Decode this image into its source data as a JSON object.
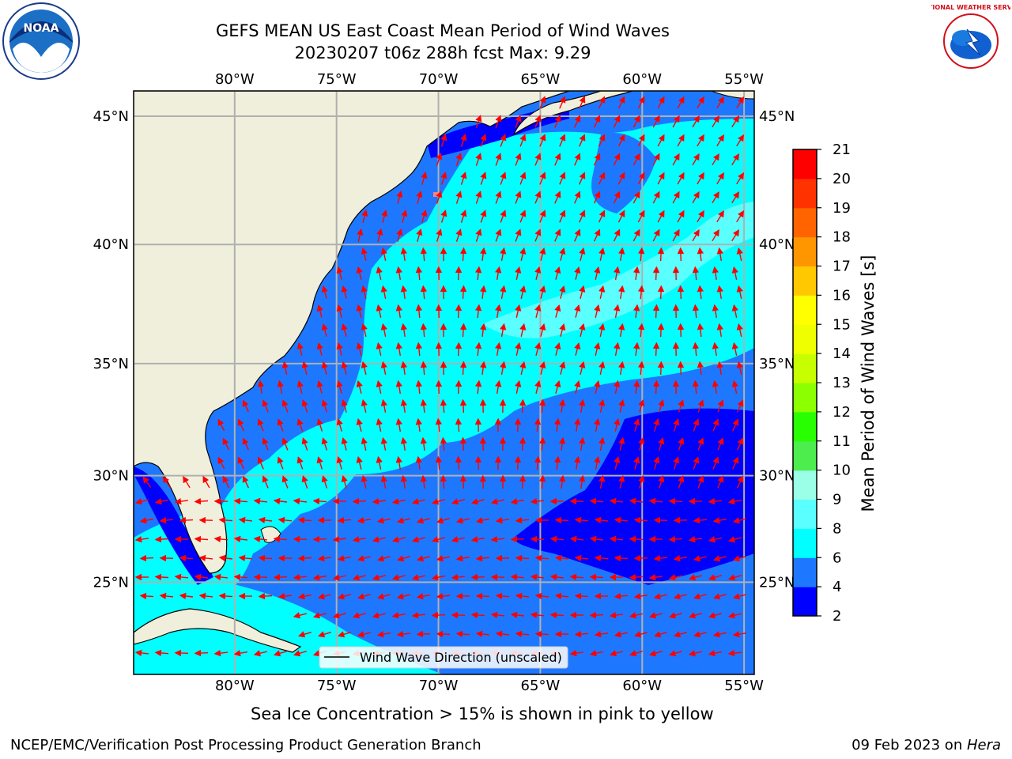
{
  "title_line1": "GEFS MEAN US East Coast Mean Period of Wind Waves",
  "title_line2": "20230207 t06z 288h fcst   Max: 9.29",
  "subnote": "Sea Ice Concentration > 15% is shown in pink to yellow",
  "credit": "NCEP/EMC/Verification Post Processing Product Generation Branch",
  "date_text": "09 Feb 2023 on ",
  "host": "Hera",
  "legend_label": "Wind Wave Direction (unscaled)",
  "colorbar": {
    "label": "Mean Period of Wind Waves [s]",
    "ticks": [
      "2",
      "4",
      "6",
      "8",
      "9",
      "10",
      "11",
      "12",
      "13",
      "14",
      "15",
      "16",
      "17",
      "18",
      "19",
      "20",
      "21"
    ],
    "colors": [
      "#0000ff",
      "#1e78ff",
      "#00ffff",
      "#5affff",
      "#9affe6",
      "#4ced4c",
      "#28ff00",
      "#8cff00",
      "#c8ff00",
      "#f0ff00",
      "#ffff00",
      "#ffc800",
      "#ff9600",
      "#ff6400",
      "#ff3200",
      "#ff0000"
    ]
  },
  "map": {
    "lon_labels": [
      "80°W",
      "75°W",
      "70°W",
      "65°W",
      "60°W",
      "55°W"
    ],
    "lat_labels": [
      "45°N",
      "40°N",
      "35°N",
      "30°N",
      "25°N"
    ],
    "land_color": "#efefdc",
    "arrow_color": "#ff0000"
  },
  "logos": {
    "noaa": "NOAA",
    "nws": "NATIONAL WEATHER SERVICE"
  }
}
